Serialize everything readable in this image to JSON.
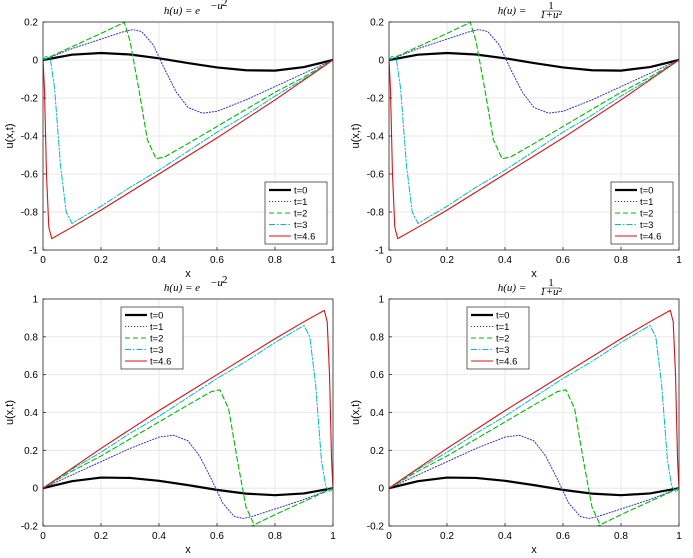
{
  "chart_data": [
    {
      "type": "line",
      "title": "h(u) = e^{-u^2}",
      "title_parts": {
        "lhs": "h(u) = e",
        "sup": "−u",
        "sup2": "2",
        "den": ""
      },
      "xlabel": "x",
      "ylabel": "u(x,t)",
      "xlim": [
        0,
        1
      ],
      "ylim": [
        -1,
        0.2
      ],
      "xticks": [
        0,
        0.2,
        0.4,
        0.6,
        0.8,
        1
      ],
      "xtick_labels": [
        "0",
        "0.2",
        "0.4",
        "0.6",
        "0.8",
        "1"
      ],
      "yticks": [
        -1,
        -0.8,
        -0.6,
        -0.4,
        -0.2,
        0,
        0.2
      ],
      "ytick_labels": [
        "-1",
        "-0.8",
        "-0.6",
        "-0.4",
        "-0.2",
        "0",
        "0.2"
      ],
      "legend_position": "bottom-right",
      "series": [
        {
          "name": "t=0",
          "color": "#000000",
          "style": "solid-thick",
          "x": [
            0,
            0.1,
            0.2,
            0.3,
            0.4,
            0.5,
            0.6,
            0.7,
            0.8,
            0.9,
            1
          ],
          "y": [
            0,
            0.028,
            0.037,
            0.029,
            0.009,
            -0.016,
            -0.039,
            -0.054,
            -0.056,
            -0.037,
            0
          ]
        },
        {
          "name": "t=1",
          "color": "#3333cc",
          "style": "dotted",
          "x": [
            0,
            0.1,
            0.2,
            0.28,
            0.31,
            0.34,
            0.38,
            0.42,
            0.46,
            0.5,
            0.55,
            0.6,
            0.7,
            0.8,
            0.9,
            1
          ],
          "y": [
            0,
            0.06,
            0.11,
            0.15,
            0.16,
            0.15,
            0.08,
            -0.05,
            -0.17,
            -0.25,
            -0.28,
            -0.27,
            -0.21,
            -0.14,
            -0.07,
            0
          ]
        },
        {
          "name": "t=2",
          "color": "#00bb00",
          "style": "dashed",
          "x": [
            0,
            0.1,
            0.2,
            0.27,
            0.28,
            0.3,
            0.33,
            0.36,
            0.39,
            0.42,
            0.5,
            0.6,
            0.7,
            0.8,
            0.9,
            1
          ],
          "y": [
            0,
            0.07,
            0.14,
            0.19,
            0.2,
            0.1,
            -0.15,
            -0.42,
            -0.52,
            -0.51,
            -0.44,
            -0.35,
            -0.26,
            -0.17,
            -0.09,
            0
          ]
        },
        {
          "name": "t=3",
          "color": "#00bbcc",
          "style": "dashdot",
          "x": [
            0,
            0.01,
            0.025,
            0.04,
            0.06,
            0.08,
            0.1,
            0.2,
            0.3,
            0.4,
            0.5,
            0.6,
            0.7,
            0.8,
            0.9,
            1
          ],
          "y": [
            0,
            0.02,
            0.01,
            -0.15,
            -0.55,
            -0.8,
            -0.86,
            -0.77,
            -0.67,
            -0.58,
            -0.48,
            -0.38,
            -0.29,
            -0.19,
            -0.1,
            0
          ]
        },
        {
          "name": "t=4.6",
          "color": "#dd1111",
          "style": "solid",
          "x": [
            0,
            0.005,
            0.012,
            0.02,
            0.03,
            0.1,
            0.2,
            0.4,
            0.6,
            0.8,
            1
          ],
          "y": [
            0,
            -0.15,
            -0.6,
            -0.88,
            -0.94,
            -0.88,
            -0.79,
            -0.6,
            -0.41,
            -0.21,
            0
          ]
        }
      ]
    },
    {
      "type": "line",
      "title": "h(u) = 1/(1+u^2)",
      "title_parts": {
        "lhs": "h(u) = ",
        "num": "1",
        "den": "1+u²"
      },
      "xlabel": "x",
      "ylabel": "u(x,t)",
      "xlim": [
        0,
        1
      ],
      "ylim": [
        -1,
        0.2
      ],
      "xticks": [
        0,
        0.2,
        0.4,
        0.6,
        0.8,
        1
      ],
      "xtick_labels": [
        "0",
        "0.2",
        "0.4",
        "0.6",
        "0.8",
        "1"
      ],
      "yticks": [
        -1,
        -0.8,
        -0.6,
        -0.4,
        -0.2,
        0,
        0.2
      ],
      "ytick_labels": [
        "-1",
        "-0.8",
        "-0.6",
        "-0.4",
        "-0.2",
        "0",
        "0.2"
      ],
      "legend_position": "bottom-right",
      "series": [
        {
          "name": "t=0",
          "color": "#000000",
          "style": "solid-thick",
          "x": [
            0,
            0.1,
            0.2,
            0.3,
            0.4,
            0.5,
            0.6,
            0.7,
            0.8,
            0.9,
            1
          ],
          "y": [
            0,
            0.028,
            0.037,
            0.029,
            0.009,
            -0.016,
            -0.039,
            -0.054,
            -0.056,
            -0.037,
            0
          ]
        },
        {
          "name": "t=1",
          "color": "#3333cc",
          "style": "dotted",
          "x": [
            0,
            0.1,
            0.2,
            0.28,
            0.31,
            0.34,
            0.38,
            0.42,
            0.46,
            0.5,
            0.55,
            0.6,
            0.7,
            0.8,
            0.9,
            1
          ],
          "y": [
            0,
            0.06,
            0.11,
            0.15,
            0.16,
            0.15,
            0.08,
            -0.05,
            -0.17,
            -0.25,
            -0.28,
            -0.27,
            -0.21,
            -0.14,
            -0.07,
            0
          ]
        },
        {
          "name": "t=2",
          "color": "#00bb00",
          "style": "dashed",
          "x": [
            0,
            0.1,
            0.2,
            0.27,
            0.28,
            0.3,
            0.33,
            0.36,
            0.39,
            0.42,
            0.5,
            0.6,
            0.7,
            0.8,
            0.9,
            1
          ],
          "y": [
            0,
            0.07,
            0.14,
            0.19,
            0.2,
            0.1,
            -0.15,
            -0.42,
            -0.52,
            -0.51,
            -0.44,
            -0.35,
            -0.26,
            -0.17,
            -0.09,
            0
          ]
        },
        {
          "name": "t=3",
          "color": "#00bbcc",
          "style": "dashdot",
          "x": [
            0,
            0.01,
            0.025,
            0.04,
            0.06,
            0.08,
            0.1,
            0.2,
            0.3,
            0.4,
            0.5,
            0.6,
            0.7,
            0.8,
            0.9,
            1
          ],
          "y": [
            0,
            0.02,
            0.01,
            -0.15,
            -0.55,
            -0.8,
            -0.86,
            -0.77,
            -0.67,
            -0.58,
            -0.48,
            -0.38,
            -0.29,
            -0.19,
            -0.1,
            0
          ]
        },
        {
          "name": "t=4.6",
          "color": "#dd1111",
          "style": "solid",
          "x": [
            0,
            0.005,
            0.012,
            0.02,
            0.03,
            0.1,
            0.2,
            0.4,
            0.6,
            0.8,
            1
          ],
          "y": [
            0,
            -0.15,
            -0.6,
            -0.88,
            -0.94,
            -0.88,
            -0.79,
            -0.6,
            -0.41,
            -0.21,
            0
          ]
        }
      ]
    },
    {
      "type": "line",
      "title": "h(u) = e^{-u^2}",
      "title_parts": {
        "lhs": "h(u) = e",
        "sup": "−u",
        "sup2": "2",
        "den": ""
      },
      "xlabel": "x",
      "ylabel": "u(x,t)",
      "xlim": [
        0,
        1
      ],
      "ylim": [
        -0.2,
        1
      ],
      "xticks": [
        0,
        0.2,
        0.4,
        0.6,
        0.8,
        1
      ],
      "xtick_labels": [
        "0",
        "0.2",
        "0.4",
        "0.6",
        "0.8",
        "1"
      ],
      "yticks": [
        -0.2,
        0,
        0.2,
        0.4,
        0.6,
        0.8,
        1
      ],
      "ytick_labels": [
        "-0.2",
        "0",
        "0.2",
        "0.4",
        "0.6",
        "0.8",
        "1"
      ],
      "legend_position": "top-left",
      "series": [
        {
          "name": "t=0",
          "color": "#000000",
          "style": "solid-thick",
          "x": [
            0,
            0.1,
            0.2,
            0.3,
            0.4,
            0.5,
            0.6,
            0.7,
            0.8,
            0.9,
            1
          ],
          "y": [
            0,
            0.037,
            0.056,
            0.054,
            0.039,
            0.016,
            -0.009,
            -0.029,
            -0.037,
            -0.028,
            0
          ]
        },
        {
          "name": "t=1",
          "color": "#3333cc",
          "style": "dotted",
          "x": [
            0,
            0.1,
            0.2,
            0.3,
            0.4,
            0.45,
            0.5,
            0.54,
            0.58,
            0.62,
            0.66,
            0.69,
            0.72,
            0.8,
            0.9,
            1
          ],
          "y": [
            0,
            0.07,
            0.14,
            0.21,
            0.27,
            0.28,
            0.25,
            0.17,
            0.05,
            -0.08,
            -0.15,
            -0.16,
            -0.15,
            -0.11,
            -0.06,
            0
          ]
        },
        {
          "name": "t=2",
          "color": "#00bb00",
          "style": "dashed",
          "x": [
            0,
            0.1,
            0.2,
            0.3,
            0.4,
            0.5,
            0.58,
            0.61,
            0.64,
            0.67,
            0.7,
            0.73,
            0.72,
            0.8,
            0.9,
            1
          ],
          "y": [
            0,
            0.09,
            0.17,
            0.26,
            0.35,
            0.44,
            0.51,
            0.52,
            0.42,
            0.15,
            -0.1,
            -0.2,
            -0.2,
            -0.14,
            -0.07,
            0
          ]
        },
        {
          "name": "t=3",
          "color": "#00bbcc",
          "style": "dashdot",
          "x": [
            0,
            0.1,
            0.2,
            0.3,
            0.4,
            0.5,
            0.6,
            0.7,
            0.8,
            0.9,
            0.92,
            0.94,
            0.96,
            0.975,
            0.99,
            1
          ],
          "y": [
            0,
            0.1,
            0.19,
            0.29,
            0.38,
            0.48,
            0.58,
            0.67,
            0.77,
            0.86,
            0.8,
            0.55,
            0.15,
            0.01,
            -0.02,
            0
          ]
        },
        {
          "name": "t=4.6",
          "color": "#dd1111",
          "style": "solid",
          "x": [
            0,
            0.2,
            0.4,
            0.6,
            0.8,
            0.9,
            0.97,
            0.98,
            0.988,
            0.995,
            1
          ],
          "y": [
            0,
            0.21,
            0.41,
            0.6,
            0.79,
            0.88,
            0.94,
            0.88,
            0.6,
            0.15,
            0
          ]
        }
      ]
    },
    {
      "type": "line",
      "title": "h(u) = 1/(1+u^2)",
      "title_parts": {
        "lhs": "h(u) = ",
        "num": "1",
        "den": "1+u²"
      },
      "xlabel": "x",
      "ylabel": "u(x,t)",
      "xlim": [
        0,
        1
      ],
      "ylim": [
        -0.2,
        1
      ],
      "xticks": [
        0,
        0.2,
        0.4,
        0.6,
        0.8,
        1
      ],
      "xtick_labels": [
        "0",
        "0.2",
        "0.4",
        "0.6",
        "0.8",
        "1"
      ],
      "yticks": [
        -0.2,
        0,
        0.2,
        0.4,
        0.6,
        0.8,
        1
      ],
      "ytick_labels": [
        "-0.2",
        "0",
        "0.2",
        "0.4",
        "0.6",
        "0.8",
        "1"
      ],
      "legend_position": "top-left",
      "series": [
        {
          "name": "t=0",
          "color": "#000000",
          "style": "solid-thick",
          "x": [
            0,
            0.1,
            0.2,
            0.3,
            0.4,
            0.5,
            0.6,
            0.7,
            0.8,
            0.9,
            1
          ],
          "y": [
            0,
            0.037,
            0.056,
            0.054,
            0.039,
            0.016,
            -0.009,
            -0.029,
            -0.037,
            -0.028,
            0
          ]
        },
        {
          "name": "t=1",
          "color": "#3333cc",
          "style": "dotted",
          "x": [
            0,
            0.1,
            0.2,
            0.3,
            0.4,
            0.45,
            0.5,
            0.54,
            0.58,
            0.62,
            0.66,
            0.69,
            0.72,
            0.8,
            0.9,
            1
          ],
          "y": [
            0,
            0.07,
            0.14,
            0.21,
            0.27,
            0.28,
            0.25,
            0.17,
            0.05,
            -0.08,
            -0.15,
            -0.16,
            -0.15,
            -0.11,
            -0.06,
            0
          ]
        },
        {
          "name": "t=2",
          "color": "#00bb00",
          "style": "dashed",
          "x": [
            0,
            0.1,
            0.2,
            0.3,
            0.4,
            0.5,
            0.58,
            0.61,
            0.64,
            0.67,
            0.7,
            0.73,
            0.72,
            0.8,
            0.9,
            1
          ],
          "y": [
            0,
            0.09,
            0.17,
            0.26,
            0.35,
            0.44,
            0.51,
            0.52,
            0.42,
            0.15,
            -0.1,
            -0.2,
            -0.2,
            -0.14,
            -0.07,
            0
          ]
        },
        {
          "name": "t=3",
          "color": "#00bbcc",
          "style": "dashdot",
          "x": [
            0,
            0.1,
            0.2,
            0.3,
            0.4,
            0.5,
            0.6,
            0.7,
            0.8,
            0.9,
            0.92,
            0.94,
            0.96,
            0.975,
            0.99,
            1
          ],
          "y": [
            0,
            0.1,
            0.19,
            0.29,
            0.38,
            0.48,
            0.58,
            0.67,
            0.77,
            0.86,
            0.8,
            0.55,
            0.15,
            0.01,
            -0.02,
            0
          ]
        },
        {
          "name": "t=4.6",
          "color": "#dd1111",
          "style": "solid",
          "x": [
            0,
            0.2,
            0.4,
            0.6,
            0.8,
            0.9,
            0.97,
            0.98,
            0.988,
            0.995,
            1
          ],
          "y": [
            0,
            0.21,
            0.41,
            0.6,
            0.79,
            0.88,
            0.94,
            0.88,
            0.6,
            0.15,
            0
          ]
        }
      ]
    }
  ]
}
